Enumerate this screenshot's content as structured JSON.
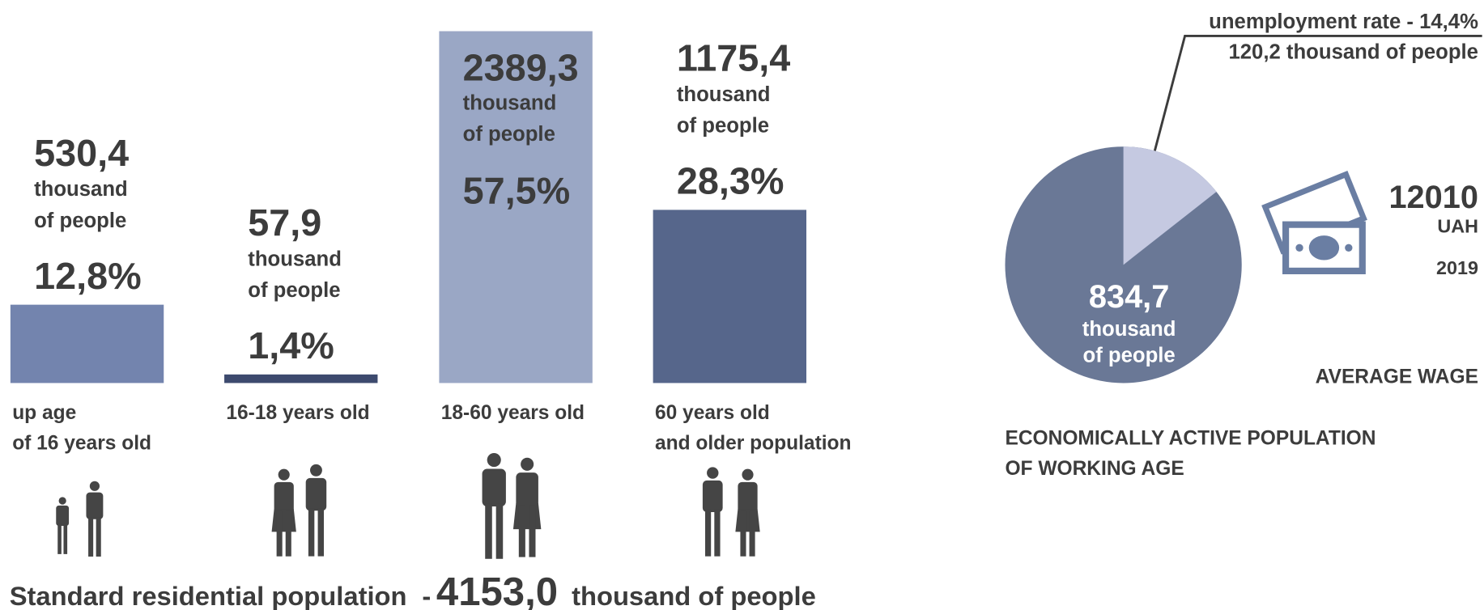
{
  "bars": {
    "categories": [
      [
        "up age",
        "of 16 years old"
      ],
      [
        "16-18 years old"
      ],
      [
        "18-60 years old"
      ],
      [
        "60  years old",
        "and older population"
      ]
    ],
    "counts": [
      "530,4",
      "57,9",
      "2389,3",
      "1175,4"
    ],
    "count_unit": [
      "thousand",
      "of people"
    ],
    "values": [
      12.8,
      1.4,
      57.5,
      28.3
    ],
    "value_labels": [
      "12,8%",
      "1,4%",
      "57,5%",
      "28,3%"
    ],
    "colors": [
      "#7384ae",
      "#3d4a6e",
      "#9aa7c5",
      "#56668b"
    ]
  },
  "footer": {
    "label": "Standard residential population",
    "dash": "-",
    "total": "4153,0",
    "unit": "thousand of people"
  },
  "pie": {
    "values": [
      14.4
    ],
    "colors": [
      "#c5c9e1",
      "#6a7896"
    ],
    "callout": [
      "unemployment rate - 14,4%",
      "120,2 thousand of people"
    ],
    "center_value": "834,7",
    "center_unit": [
      "thousand",
      "of people"
    ],
    "caption": [
      "ECONOMICALLY ACTIVE POPULATION",
      "OF WORKING AGE"
    ]
  },
  "wage": {
    "amount": "12010",
    "currency": "UAH",
    "year": "2019",
    "label": "AVERAGE WAGE"
  }
}
